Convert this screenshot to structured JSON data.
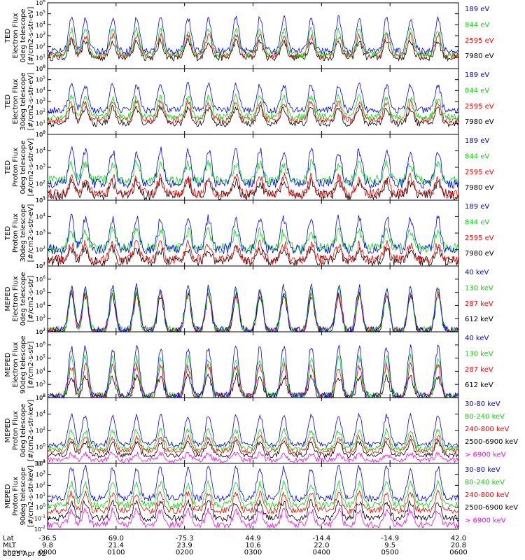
{
  "figure": {
    "date_label": "2025 Apr 02",
    "row_labels": [
      "Lat",
      "MLT",
      "hhmm"
    ],
    "time_ticks": [
      {
        "lat": "-36.5",
        "mlt": "9.8",
        "hhmm": "0000"
      },
      {
        "lat": "69.0",
        "mlt": "21.4",
        "hhmm": "0100"
      },
      {
        "lat": "-75.3",
        "mlt": "23.9",
        "hhmm": "0200"
      },
      {
        "lat": "44.9",
        "mlt": "10.6",
        "hhmm": "0300"
      },
      {
        "lat": "-14.4",
        "mlt": "22.0",
        "hhmm": "0400"
      },
      {
        "lat": "-14.9",
        "mlt": "9.5",
        "hhmm": "0500"
      },
      {
        "lat": "42.0",
        "mlt": "20.8",
        "hhmm": "0600"
      }
    ],
    "x_range_hours": [
      0,
      6
    ]
  },
  "colors": {
    "black": "#000000",
    "red": "#ff0000",
    "green": "#00dd00",
    "blue": "#0000ff",
    "magenta": "#ff00ff"
  },
  "chart_data": [
    {
      "type": "line",
      "title": "",
      "ylabel": [
        "TED",
        "Electron Flux",
        "0deg telescope",
        "[#/cm2-s-str-eV]"
      ],
      "y_log": true,
      "ytick_exponents": [
        0,
        1,
        2,
        3,
        4,
        5,
        6
      ],
      "series": [
        {
          "name": "7980 eV",
          "color": "#000000",
          "base": 1,
          "peak": 2.5
        },
        {
          "name": "2595 eV",
          "color": "#ff0000",
          "base": 1.2,
          "peak": 3.0
        },
        {
          "name": "844 eV",
          "color": "#00dd00",
          "base": 1.3,
          "peak": 3.5
        },
        {
          "name": "189 eV",
          "color": "#0000ff",
          "base": 1.6,
          "peak": 4.6
        }
      ]
    },
    {
      "type": "line",
      "title": "",
      "ylabel": [
        "TED",
        "Electron Flux",
        "30deg telescope",
        "[#/cm2-s-str-eV]"
      ],
      "y_log": true,
      "ytick_exponents": [
        0,
        1,
        2,
        3,
        4,
        5,
        6
      ],
      "series": [
        {
          "name": "7980 eV",
          "color": "#000000",
          "base": 1,
          "peak": 2.4
        },
        {
          "name": "2595 eV",
          "color": "#ff0000",
          "base": 1.3,
          "peak": 2.9
        },
        {
          "name": "844 eV",
          "color": "#00dd00",
          "base": 1.6,
          "peak": 3.4
        },
        {
          "name": "189 eV",
          "color": "#0000ff",
          "base": 2.2,
          "peak": 4.5
        }
      ]
    },
    {
      "type": "line",
      "title": "",
      "ylabel": [
        "TED",
        "Proton Flux",
        "0deg telescope",
        "[#/cm2-s-str-eV]"
      ],
      "y_log": true,
      "ytick_exponents": [
        1,
        2,
        3,
        4,
        5
      ],
      "series": [
        {
          "name": "7980 eV",
          "color": "#000000",
          "base": 1.3,
          "peak": 2.1
        },
        {
          "name": "2595 eV",
          "color": "#ff0000",
          "base": 1.4,
          "peak": 2.4
        },
        {
          "name": "844 eV",
          "color": "#00dd00",
          "base": 2.2,
          "peak": 3.2
        },
        {
          "name": "189 eV",
          "color": "#0000ff",
          "base": 2.0,
          "peak": 4.0
        }
      ]
    },
    {
      "type": "line",
      "title": "",
      "ylabel": [
        "TED",
        "Proton Flux",
        "30deg telescope",
        "[#/cm2-s-str-eV]"
      ],
      "y_log": true,
      "ytick_exponents": [
        1,
        2,
        3,
        4,
        5
      ],
      "series": [
        {
          "name": "7980 eV",
          "color": "#000000",
          "base": 1.3,
          "peak": 2.0
        },
        {
          "name": "2595 eV",
          "color": "#ff0000",
          "base": 1.4,
          "peak": 2.3
        },
        {
          "name": "844 eV",
          "color": "#00dd00",
          "base": 2.1,
          "peak": 3.1
        },
        {
          "name": "189 eV",
          "color": "#0000ff",
          "base": 2.0,
          "peak": 3.9
        }
      ]
    },
    {
      "type": "line",
      "title": "",
      "ylabel": [
        "MEPED",
        "Electron Flux",
        "0deg telescope",
        "[#/cm2-s-str]"
      ],
      "y_log": true,
      "ytick_exponents": [
        2,
        3,
        4,
        5,
        6,
        7
      ],
      "series": [
        {
          "name": "612 keV",
          "color": "#000000",
          "base": 2.0,
          "peak": 4.8
        },
        {
          "name": "287 keV",
          "color": "#ff0000",
          "base": 2.1,
          "peak": 4.9
        },
        {
          "name": "130 keV",
          "color": "#00dd00",
          "base": 2.1,
          "peak": 5.1
        },
        {
          "name": "40 keV",
          "color": "#0000ff",
          "base": 2.1,
          "peak": 5.4
        }
      ]
    },
    {
      "type": "line",
      "title": "",
      "ylabel": [
        "MEPED",
        "Electron Flux",
        "90deg telescope",
        "[#/cm2-s-str]"
      ],
      "y_log": true,
      "ytick_exponents": [
        2,
        3,
        4,
        5,
        6,
        7
      ],
      "series": [
        {
          "name": "612 keV",
          "color": "#000000",
          "base": 2.0,
          "peak": 3.6
        },
        {
          "name": "287 keV",
          "color": "#ff0000",
          "base": 2.1,
          "peak": 4.4
        },
        {
          "name": "130 keV",
          "color": "#00dd00",
          "base": 2.1,
          "peak": 5.0
        },
        {
          "name": "40 keV",
          "color": "#0000ff",
          "base": 2.1,
          "peak": 5.8
        }
      ]
    },
    {
      "type": "line",
      "title": "",
      "ylabel": [
        "MEPED",
        "Proton Flux",
        "0deg telescope",
        "[#/cm2-s-str-keV]"
      ],
      "y_log": true,
      "ytick_exponents": [
        -2,
        0,
        2,
        4,
        6
      ],
      "series": [
        {
          "name": "> 6900 keV",
          "color": "#ff00ff",
          "base": -1.6,
          "peak": -0.8
        },
        {
          "name": "2500-6900 keV",
          "color": "#000000",
          "base": -1.0,
          "peak": 0.6
        },
        {
          "name": "240-800 keV",
          "color": "#ff0000",
          "base": -0.5,
          "peak": 1.2
        },
        {
          "name": "80-240 keV",
          "color": "#00dd00",
          "base": -0.2,
          "peak": 2.0
        },
        {
          "name": "30-80 keV",
          "color": "#0000ff",
          "base": 0.3,
          "peak": 3.8
        }
      ]
    },
    {
      "type": "line",
      "title": "",
      "ylabel": [
        "MEPED",
        "Proton Flux",
        "90deg telescope",
        "[#/cm2-s-str-keV]"
      ],
      "y_log": true,
      "ytick_exponents": [
        -2,
        -1,
        0,
        1,
        2,
        3,
        4
      ],
      "series": [
        {
          "name": "> 6900 keV",
          "color": "#ff00ff",
          "base": -1.6,
          "peak": -0.3
        },
        {
          "name": "2500-6900 keV",
          "color": "#000000",
          "base": -1.0,
          "peak": 0.5
        },
        {
          "name": "240-800 keV",
          "color": "#ff0000",
          "base": -0.3,
          "peak": 1.3
        },
        {
          "name": "80-240 keV",
          "color": "#00dd00",
          "base": 0.2,
          "peak": 2.2
        },
        {
          "name": "30-80 keV",
          "color": "#0000ff",
          "base": 0.8,
          "peak": 3.6
        }
      ]
    }
  ]
}
